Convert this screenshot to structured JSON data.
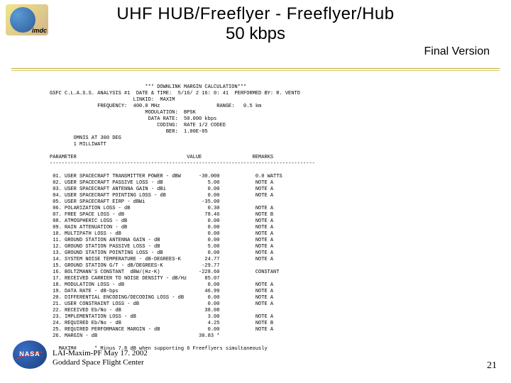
{
  "logos": {
    "imdc": "imdc",
    "nasa": "NASA"
  },
  "title": {
    "line1": "UHF HUB/Freeflyer - Freeflyer/Hub",
    "line2": "50 kbps"
  },
  "final_version": "Final Version",
  "header": {
    "banner": "*** DOWNLINK MARGIN CALCULATION***",
    "analysis": "GSFC C.L.A.S.S. ANALYSIS #1  DATE & TIME:  5/16/ 2 16: 0: 41  PERFORMED BY: R. VENTO",
    "linkid_lbl": "LINKID:",
    "linkid": "MAXIM",
    "freq_lbl": "FREQUENCY:",
    "freq": "400.0 MHz",
    "range_lbl": "RANGE:",
    "range": "0.5 km",
    "mod_lbl": "MODULATION:",
    "mod": "BPSK",
    "rate_lbl": "DATA RATE:",
    "rate": "50.000 kbps",
    "cod_lbl": "CODING:",
    "cod": "RATE 1/2 CODED",
    "ber_lbl": "BER:",
    "ber": "1.00E-05",
    "ant": "OMNIS AT 300 DEG",
    "pwr": "1 MILLIWATT"
  },
  "columns": {
    "param": "PARAMETER",
    "value": "VALUE",
    "remarks": "REMARKS"
  },
  "dashes": "-----------------------------------------------------------------------------------------",
  "params": [
    {
      "n": "01.",
      "p": "USER SPACECRAFT TRANSMITTER POWER - dBW",
      "v": "-30.000",
      "r": "0.0 WATTS"
    },
    {
      "n": "02.",
      "p": "USER SPACECRAFT PASSIVE LOSS - dB",
      "v": "5.00",
      "r": "NOTE A"
    },
    {
      "n": "03.",
      "p": "USER SPACECRAFT ANTENNA GAIN - dBi",
      "v": "0.00",
      "r": "NOTE A"
    },
    {
      "n": "04.",
      "p": "USER SPACECRAFT POINTING LOSS - dB",
      "v": "0.00",
      "r": "NOTE A"
    },
    {
      "n": "05.",
      "p": "USER SPACECRAFT EIRP - dBWi",
      "v": "-35.00",
      "r": ""
    },
    {
      "n": "06.",
      "p": "POLARIZATION LOSS - dB",
      "v": "0.30",
      "r": "NOTE A"
    },
    {
      "n": "07.",
      "p": "FREE SPACE LOSS - dB",
      "v": "78.46",
      "r": "NOTE B"
    },
    {
      "n": "08.",
      "p": "ATMOSPHERIC LOSS - dB",
      "v": "0.00",
      "r": "NOTE A"
    },
    {
      "n": "09.",
      "p": "RAIN ATTENUATION - dB",
      "v": "0.00",
      "r": "NOTE A"
    },
    {
      "n": "10.",
      "p": "MULTIPATH LOSS - dB",
      "v": "0.00",
      "r": "NOTE A"
    },
    {
      "n": "11.",
      "p": "GROUND STATION ANTENNA GAIN - dB",
      "v": "0.00",
      "r": "NOTE A"
    },
    {
      "n": "12.",
      "p": "GROUND STATION PASSIVE LOSS - dB",
      "v": "5.00",
      "r": "NOTE A"
    },
    {
      "n": "13.",
      "p": "GROUND STATION POINTING LOSS - dB",
      "v": "0.00",
      "r": "NOTE A"
    },
    {
      "n": "14.",
      "p": "SYSTEM NOISE TEMPERATURE - dB-DEGREES-K",
      "v": "24.77",
      "r": "NOTE A"
    },
    {
      "n": "15.",
      "p": "GROUND STATION G/T - dB/DEGREES-K",
      "v": "-29.77",
      "r": ""
    },
    {
      "n": "16.",
      "p": "BOLTZMANN'S CONSTANT  dBW/(Hz-K)",
      "v": "-228.60",
      "r": "CONSTANT"
    },
    {
      "n": "17.",
      "p": "RECEIVED CARRIER TO NOISE DENSITY - dB/Hz",
      "v": "85.07",
      "r": ""
    },
    {
      "n": "18.",
      "p": "MODULATION LOSS - dB",
      "v": "0.00",
      "r": "NOTE A"
    },
    {
      "n": "19.",
      "p": "DATA RATE - dB-bps",
      "v": "46.99",
      "r": "NOTE A"
    },
    {
      "n": "20.",
      "p": "DIFFERENTIAL ENCODING/DECODING LOSS - dB",
      "v": "0.00",
      "r": "NOTE A"
    },
    {
      "n": "21.",
      "p": "USER CONSTRAINT LOSS - dB",
      "v": "0.00",
      "r": "NOTE A"
    },
    {
      "n": "22.",
      "p": "RECEIVED Eb/No - dB",
      "v": "38.08",
      "r": ""
    },
    {
      "n": "23.",
      "p": "IMPLEMENTATION LOSS - dB",
      "v": "3.00",
      "r": "NOTE A"
    },
    {
      "n": "24.",
      "p": "REQUIRED Eb/No - dB",
      "v": "4.25",
      "r": "NOTE B"
    },
    {
      "n": "25.",
      "p": "REQUIRED PERFORMANCE MARGIN - dB",
      "v": "0.00",
      "r": "NOTE A"
    },
    {
      "n": "26.",
      "p": "MARGIN - dB",
      "v": "30.83 *",
      "r": ""
    }
  ],
  "footnote": {
    "lbl": "MAXIM#",
    "txt": "* Minus 7.8 dB when supporting 6 Freeflyers simultaneously"
  },
  "footer": {
    "l1": "LAI-Maxim-PF May 17. 2002",
    "l2": "Goddard Space Flight Center",
    "page": "21"
  },
  "style": {
    "mono_font_size": 7,
    "mono_line_height": 9,
    "title_size": 24,
    "bg": "#ffffff",
    "rule": "#c0a830"
  }
}
